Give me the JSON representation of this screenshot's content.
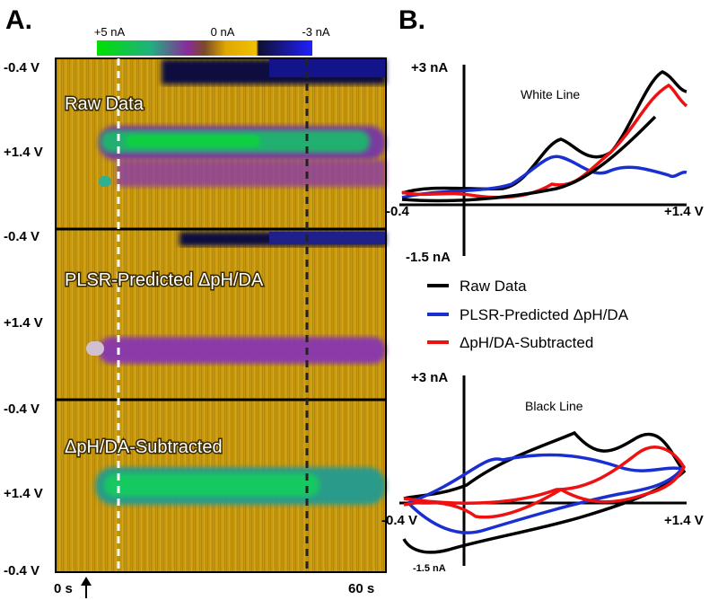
{
  "panel_a": {
    "label": "A.",
    "colorbar_labels": [
      "+5 nA",
      "0 nA",
      "-3 nA"
    ],
    "plots": [
      {
        "title": "Raw Data",
        "y_labels": [
          "-0.4 V",
          "+1.4 V"
        ]
      },
      {
        "title": "PLSR-Predicted ΔpH/DA",
        "y_labels": [
          "-0.4 V",
          "+1.4 V"
        ]
      },
      {
        "title": "ΔpH/DA-Subtracted",
        "y_labels": [
          "-0.4 V",
          "+1.4 V"
        ]
      }
    ],
    "bottom_y_label": "-0.4 V",
    "x_labels": [
      "0 s",
      "60 s"
    ]
  },
  "panel_b": {
    "label": "B.",
    "plots": [
      {
        "title": "White Line",
        "y_top": "+3 nA",
        "y_bottom": "-1.5 nA",
        "x_left": "-0.4",
        "x_right": "+1.4 V"
      },
      {
        "title": "Black Line",
        "y_top": "+3 nA",
        "y_bottom": "-1.5 nA",
        "x_left": "-0.4 V",
        "x_right": "+1.4 V"
      }
    ],
    "legend": [
      "Raw Data",
      "PLSR-Predicted ΔpH/DA",
      "ΔpH/DA-Subtracted"
    ]
  }
}
